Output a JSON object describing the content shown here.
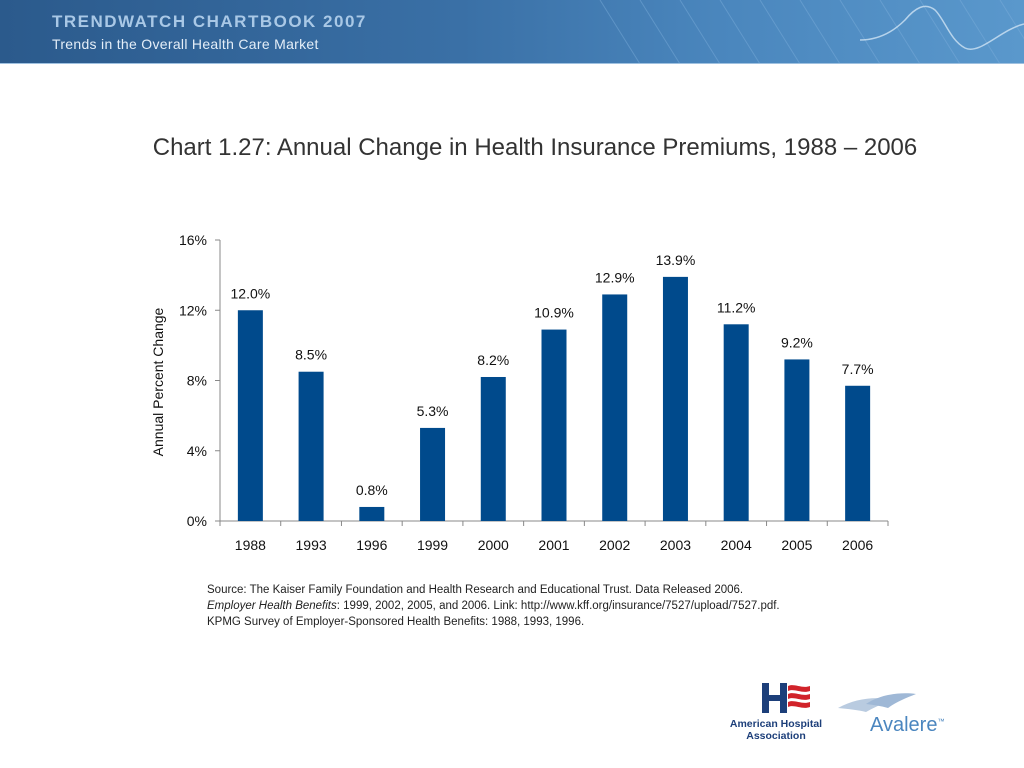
{
  "header": {
    "title": "TRENDWATCH CHARTBOOK 2007",
    "subtitle": "Trends in the Overall Health Care Market"
  },
  "colors": {
    "banner": "#2b5a8c",
    "bar": "#004a8c",
    "aha_red": "#d1232a",
    "aha_blue": "#1d3f7a",
    "avalere_blue": "#4b86bf"
  },
  "chart_data": {
    "type": "bar",
    "title": "Chart 1.27: Annual Change in Health Insurance Premiums, 1988 – 2006",
    "ylabel": "Annual Percent Change",
    "xlabel": "",
    "categories": [
      "1988",
      "1993",
      "1996",
      "1999",
      "2000",
      "2001",
      "2002",
      "2003",
      "2004",
      "2005",
      "2006"
    ],
    "values": [
      12.0,
      8.5,
      0.8,
      5.3,
      8.2,
      10.9,
      12.9,
      13.9,
      11.2,
      9.2,
      7.7
    ],
    "data_labels": [
      "12.0%",
      "8.5%",
      "0.8%",
      "5.3%",
      "8.2%",
      "10.9%",
      "12.9%",
      "13.9%",
      "11.2%",
      "9.2%",
      "7.7%"
    ],
    "ylim": [
      0,
      16
    ],
    "yticks": [
      0,
      4,
      8,
      12,
      16
    ],
    "ytick_labels": [
      "0%",
      "4%",
      "8%",
      "12%",
      "16%"
    ],
    "grid": false,
    "legend": "none"
  },
  "source": {
    "line1": "Source:  The Kaiser Family Foundation and Health Research and Educational Trust. Data Released 2006.",
    "line2_italic": "Employer Health Benefits",
    "line2_rest": ": 1999, 2002, 2005, and 2006. Link: http://www.kff.org/insurance/7527/upload/7527.pdf.",
    "line3": "KPMG Survey of Employer-Sponsored Health Benefits: 1988, 1993, 1996."
  },
  "logos": {
    "aha_name": "American Hospital Association",
    "aha_icon": "aha-h-flag-logo",
    "avalere_name": "Avalere",
    "avalere_mark": "™",
    "avalere_icon": "avalere-wings-logo"
  }
}
